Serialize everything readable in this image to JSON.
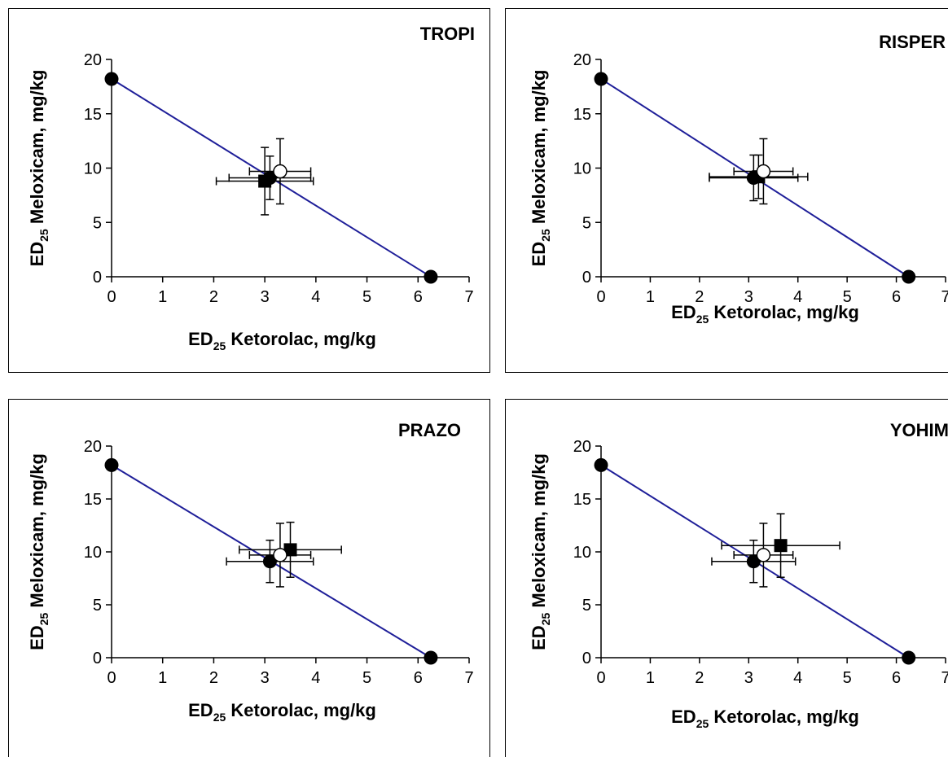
{
  "chart_data": [
    {
      "type": "scatter",
      "title": "TROPI",
      "xlabel": {
        "pre": "ED",
        "sub": "25",
        "post": " Ketorolac, mg/kg"
      },
      "ylabel": {
        "pre": "ED",
        "sub": "25",
        "post": " Meloxicam, mg/kg"
      },
      "xlim": [
        0,
        7
      ],
      "ylim": [
        0,
        20
      ],
      "xticks": [
        "0",
        "1",
        "2",
        "3",
        "4",
        "5",
        "6",
        "7"
      ],
      "yticks": [
        "0",
        "5",
        "10",
        "15",
        "20"
      ],
      "grid": false,
      "line": {
        "x": [
          0,
          6.25
        ],
        "y": [
          18.2,
          0
        ],
        "color": "#1f1f99"
      },
      "points": [
        {
          "x": 0,
          "y": 18.2,
          "marker": "circle-filled"
        },
        {
          "x": 6.25,
          "y": 0,
          "marker": "circle-filled"
        },
        {
          "x": 3.3,
          "y": 9.7,
          "xerr": 0.6,
          "yerr": 3.0,
          "marker": "circle-open"
        },
        {
          "x": 3.1,
          "y": 9.1,
          "xerr": 0.8,
          "yerr": 2.0,
          "marker": "circle-filled"
        },
        {
          "x": 3.0,
          "y": 8.8,
          "xerr": 0.95,
          "yerr": 3.1,
          "marker": "square-filled"
        }
      ]
    },
    {
      "type": "scatter",
      "title": "RISPER",
      "xlabel": {
        "pre": "ED",
        "sub": "25",
        "post": " Ketorolac, mg/kg"
      },
      "ylabel": {
        "pre": "ED",
        "sub": "25",
        "post": " Meloxicam, mg/kg"
      },
      "xlim": [
        0,
        7
      ],
      "ylim": [
        0,
        20
      ],
      "xticks": [
        "0",
        "1",
        "2",
        "3",
        "4",
        "5",
        "6",
        "7"
      ],
      "yticks": [
        "0",
        "5",
        "10",
        "15",
        "20"
      ],
      "grid": false,
      "line": {
        "x": [
          0,
          6.25
        ],
        "y": [
          18.2,
          0
        ],
        "color": "#1f1f99"
      },
      "points": [
        {
          "x": 0,
          "y": 18.2,
          "marker": "circle-filled"
        },
        {
          "x": 6.25,
          "y": 0,
          "marker": "circle-filled"
        },
        {
          "x": 3.3,
          "y": 9.7,
          "xerr": 0.6,
          "yerr": 3.0,
          "marker": "circle-open"
        },
        {
          "x": 3.1,
          "y": 9.1,
          "xerr": 0.9,
          "yerr": 2.1,
          "marker": "circle-filled"
        },
        {
          "x": 3.2,
          "y": 9.2,
          "xerr": 1.0,
          "yerr": 2.0,
          "marker": "square-filled"
        }
      ]
    },
    {
      "type": "scatter",
      "title": "PRAZO",
      "xlabel": {
        "pre": "ED",
        "sub": "25",
        "post": " Ketorolac, mg/kg"
      },
      "ylabel": {
        "pre": "ED",
        "sub": "25",
        "post": " Meloxicam, mg/kg"
      },
      "xlim": [
        0,
        7
      ],
      "ylim": [
        0,
        20
      ],
      "xticks": [
        "0",
        "1",
        "2",
        "3",
        "4",
        "5",
        "6",
        "7"
      ],
      "yticks": [
        "0",
        "5",
        "10",
        "15",
        "20"
      ],
      "grid": false,
      "line": {
        "x": [
          0,
          6.25
        ],
        "y": [
          18.2,
          0
        ],
        "color": "#1f1f99"
      },
      "points": [
        {
          "x": 0,
          "y": 18.2,
          "marker": "circle-filled"
        },
        {
          "x": 6.25,
          "y": 0,
          "marker": "circle-filled"
        },
        {
          "x": 3.3,
          "y": 9.7,
          "xerr": 0.6,
          "yerr": 3.0,
          "marker": "circle-open"
        },
        {
          "x": 3.1,
          "y": 9.1,
          "xerr": 0.85,
          "yerr": 2.0,
          "marker": "circle-filled"
        },
        {
          "x": 3.5,
          "y": 10.2,
          "xerr": 1.0,
          "yerr": 2.6,
          "marker": "square-filled"
        }
      ]
    },
    {
      "type": "scatter",
      "title": "YOHIM",
      "xlabel": {
        "pre": "ED",
        "sub": "25",
        "post": " Ketorolac, mg/kg"
      },
      "ylabel": {
        "pre": "ED",
        "sub": "25",
        "post": " Meloxicam, mg/kg"
      },
      "xlim": [
        0,
        7
      ],
      "ylim": [
        0,
        20
      ],
      "xticks": [
        "0",
        "1",
        "2",
        "3",
        "4",
        "5",
        "6",
        "7"
      ],
      "yticks": [
        "0",
        "5",
        "10",
        "15",
        "20"
      ],
      "grid": false,
      "line": {
        "x": [
          0,
          6.25
        ],
        "y": [
          18.2,
          0
        ],
        "color": "#1f1f99"
      },
      "points": [
        {
          "x": 0,
          "y": 18.2,
          "marker": "circle-filled"
        },
        {
          "x": 6.25,
          "y": 0,
          "marker": "circle-filled"
        },
        {
          "x": 3.3,
          "y": 9.7,
          "xerr": 0.6,
          "yerr": 3.0,
          "marker": "circle-open"
        },
        {
          "x": 3.1,
          "y": 9.1,
          "xerr": 0.85,
          "yerr": 2.0,
          "marker": "circle-filled"
        },
        {
          "x": 3.65,
          "y": 10.6,
          "xerr": 1.2,
          "yerr": 3.0,
          "marker": "square-filled"
        }
      ]
    }
  ]
}
